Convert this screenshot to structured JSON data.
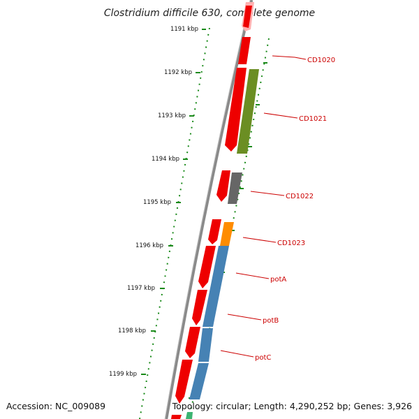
{
  "title": "Clostridium difficile 630, complete genome",
  "accession": "Accession: NC_009089",
  "topology": "Topology: circular; Length: 4,290,252 bp; Genes: 3,926",
  "ticks": [
    "1191 kbp",
    "1192 kbp",
    "1193 kbp",
    "1194 kbp",
    "1195 kbp",
    "1196 kbp",
    "1197 kbp",
    "1198 kbp",
    "1199 kbp"
  ],
  "gene_labels": [
    "CD1020",
    "CD1021",
    "CD1022",
    "CD1023",
    "potA",
    "potB",
    "potC"
  ],
  "colors": {
    "backbone": "#8a8a8a",
    "red_feature": "#ee0000",
    "olive_feature": "#6b8e23",
    "gray_feature": "#666666",
    "orange_feature": "#ff8c00",
    "blue_feature": "#4682b4",
    "ruler_green": "#1a8a1a",
    "label_red": "#cc0000"
  }
}
